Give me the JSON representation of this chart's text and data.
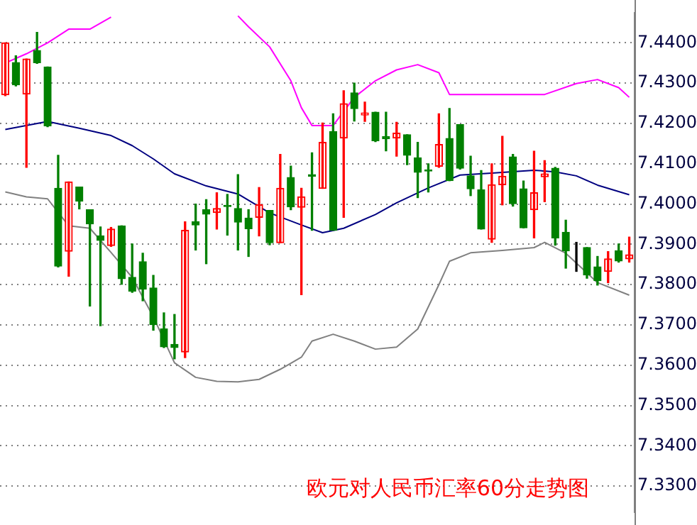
{
  "chart_data": {
    "type": "candlestick",
    "categories": [
      null,
      null,
      null,
      null,
      null,
      null,
      null,
      null,
      null,
      null,
      null,
      null,
      null,
      null,
      null,
      null,
      null,
      null,
      null,
      null,
      null,
      null,
      null,
      null,
      null,
      null,
      null,
      null,
      null,
      null,
      null,
      null,
      null,
      null,
      null,
      null,
      null,
      null,
      null,
      null,
      null,
      null,
      null,
      null,
      null,
      null,
      null,
      null,
      null,
      null,
      null,
      null,
      null,
      null,
      null,
      null,
      null,
      null,
      null,
      null
    ],
    "ohlc": [
      [
        7.4271,
        7.44,
        7.4269,
        7.44
      ],
      [
        7.4351,
        7.4368,
        7.4293,
        7.4296
      ],
      [
        7.4273,
        7.436,
        7.4091,
        7.436
      ],
      [
        7.4381,
        7.4426,
        7.4349,
        7.4351
      ],
      [
        7.434,
        7.434,
        7.4192,
        7.4194
      ],
      [
        7.4039,
        7.4121,
        7.3844,
        7.3846
      ],
      [
        7.3883,
        7.4055,
        7.3821,
        7.4055
      ],
      [
        7.4042,
        7.4042,
        7.3988,
        7.4007
      ],
      [
        7.3986,
        7.3986,
        7.3747,
        7.3951
      ],
      [
        7.3921,
        7.3943,
        7.3698,
        7.391
      ],
      [
        7.3897,
        7.3942,
        7.3895,
        7.3938
      ],
      [
        7.3946,
        7.3946,
        7.3801,
        7.3815
      ],
      [
        7.3818,
        7.3901,
        7.3781,
        7.3784
      ],
      [
        7.3857,
        7.3878,
        7.376,
        7.3789
      ],
      [
        7.3792,
        7.3823,
        7.3687,
        7.3701
      ],
      [
        7.369,
        7.373,
        7.3644,
        7.3646
      ],
      [
        7.3652,
        7.3726,
        7.3616,
        7.3644
      ],
      [
        7.3633,
        7.3956,
        7.3619,
        7.3935
      ],
      [
        7.3956,
        7.4,
        7.3886,
        7.3948
      ],
      [
        7.3986,
        7.4011,
        7.3852,
        7.3975
      ],
      [
        7.3979,
        7.4028,
        7.3938,
        7.3989
      ],
      [
        7.3997,
        7.4024,
        7.3923,
        7.3994
      ],
      [
        7.3989,
        7.4073,
        7.3886,
        7.3955
      ],
      [
        7.3965,
        7.3986,
        7.387,
        7.3939
      ],
      [
        7.3967,
        7.4041,
        7.3921,
        7.3998
      ],
      [
        7.3984,
        7.3984,
        7.3899,
        7.3904
      ],
      [
        7.3904,
        7.4123,
        7.3904,
        7.4039
      ],
      [
        7.4066,
        7.4094,
        7.3986,
        7.3993
      ],
      [
        7.3992,
        7.4039,
        7.3775,
        7.4018
      ],
      [
        7.4073,
        7.4127,
        7.3935,
        7.4069
      ],
      [
        7.4039,
        7.4201,
        7.4039,
        7.4153
      ],
      [
        7.418,
        7.4224,
        7.3935,
        7.3935
      ],
      [
        7.4164,
        7.4281,
        7.3967,
        7.4249
      ],
      [
        7.4276,
        7.43,
        7.4206,
        7.4237
      ],
      [
        7.4221,
        7.4253,
        7.4205,
        7.4226
      ],
      [
        7.4228,
        7.4228,
        7.4155,
        7.4157
      ],
      [
        7.4167,
        7.4228,
        7.4132,
        7.4162
      ],
      [
        7.4164,
        7.4203,
        7.4119,
        7.4176
      ],
      [
        7.4172,
        7.4172,
        7.4098,
        7.4121
      ],
      [
        7.4115,
        7.4153,
        7.4016,
        7.4079
      ],
      [
        7.4085,
        7.41,
        7.403,
        7.4082
      ],
      [
        7.4094,
        7.4224,
        7.4091,
        7.4148
      ],
      [
        7.4163,
        7.4237,
        7.4058,
        7.4058
      ],
      [
        7.4197,
        7.4197,
        7.4087,
        7.4089
      ],
      [
        7.407,
        7.4119,
        7.4021,
        7.4038
      ],
      [
        7.4035,
        7.4083,
        7.3938,
        7.3938
      ],
      [
        7.3913,
        7.41,
        7.3905,
        7.4048
      ],
      [
        7.4048,
        7.4168,
        7.3998,
        7.4069
      ],
      [
        7.4117,
        7.4123,
        7.3995,
        7.4001
      ],
      [
        7.4038,
        7.4057,
        7.3941,
        7.3941
      ],
      [
        7.3986,
        7.4131,
        7.3916,
        7.4028
      ],
      [
        7.4068,
        7.4108,
        7.4006,
        7.4075
      ],
      [
        7.4089,
        7.4091,
        7.3898,
        7.3916
      ],
      [
        7.393,
        7.396,
        7.3841,
        7.3884
      ],
      [
        7.3873,
        7.3905,
        7.3833,
        7.3873
      ],
      [
        7.3892,
        7.3892,
        7.3816,
        7.3824
      ],
      [
        7.3844,
        7.387,
        7.3799,
        7.381
      ],
      [
        7.3833,
        7.3882,
        7.3805,
        7.3864
      ],
      [
        7.3884,
        7.3901,
        7.3856,
        7.3859
      ],
      [
        7.3864,
        7.3918,
        7.3856,
        7.3874
      ]
    ],
    "colors": [
      "#ff0000",
      "#008000",
      "#ff0000",
      "#008000",
      "#008000",
      "#008000",
      "#ff0000",
      "#008000",
      "#008000",
      "#008000",
      "#ff0000",
      "#008000",
      "#008000",
      "#008000",
      "#008000",
      "#008000",
      "#008000",
      "#ff0000",
      "#008000",
      "#008000",
      "#ff0000",
      "#008000",
      "#008000",
      "#008000",
      "#ff0000",
      "#008000",
      "#ff0000",
      "#008000",
      "#ff0000",
      "#008000",
      "#ff0000",
      "#008000",
      "#ff0000",
      "#008000",
      "#ff0000",
      "#008000",
      "#008000",
      "#ff0000",
      "#008000",
      "#008000",
      "#008000",
      "#ff0000",
      "#008000",
      "#008000",
      "#008000",
      "#008000",
      "#ff0000",
      "#ff0000",
      "#008000",
      "#008000",
      "#ff0000",
      "#ff0000",
      "#008000",
      "#008000",
      "#000000",
      "#008000",
      "#008000",
      "#ff0000",
      "#008000",
      "#ff0000"
    ],
    "series": [
      {
        "type": "line",
        "color": "#ff00ff",
        "values": [
          7.435,
          null,
          7.4373,
          null,
          7.44,
          null,
          7.4434,
          null,
          7.4434,
          null,
          7.4464,
          null,
          null,
          null,
          null,
          null,
          null,
          null,
          null,
          null,
          null,
          null,
          7.4467,
          7.444,
          null,
          7.439,
          null,
          7.4306,
          7.4239,
          7.4195,
          null,
          7.4195,
          null,
          7.4265,
          null,
          7.4306,
          null,
          7.4333,
          null,
          7.4346,
          null,
          7.4326,
          7.4272,
          null,
          7.4272,
          null,
          null,
          7.4272,
          null,
          null,
          null,
          7.4272,
          null,
          null,
          7.4299,
          null,
          7.4309,
          null,
          7.4289,
          7.4265
        ]
      },
      {
        "type": "line",
        "color": "#000080",
        "values": [
          7.4185,
          null,
          null,
          null,
          7.4205,
          null,
          null,
          7.4188,
          null,
          null,
          7.417,
          null,
          7.4145,
          null,
          7.4112,
          null,
          7.4075,
          null,
          null,
          7.4045,
          null,
          null,
          7.4025,
          null,
          null,
          7.3978,
          null,
          null,
          7.3948,
          null,
          7.3929,
          null,
          7.394,
          null,
          null,
          7.3974,
          null,
          7.4003,
          null,
          null,
          7.404,
          null,
          null,
          7.4072,
          null,
          null,
          7.4077,
          null,
          null,
          null,
          7.4084,
          null,
          7.408,
          null,
          7.407,
          null,
          7.4047,
          null,
          null,
          7.4023
        ]
      },
      {
        "type": "line",
        "color": "#808080",
        "values": [
          7.403,
          null,
          7.4018,
          null,
          7.4013,
          null,
          7.3946,
          null,
          7.394,
          null,
          7.388,
          null,
          7.3818,
          null,
          7.372,
          null,
          7.3606,
          null,
          7.357,
          null,
          7.356,
          null,
          7.3559,
          null,
          7.3565,
          null,
          7.359,
          null,
          7.362,
          7.366,
          null,
          7.3677,
          null,
          7.366,
          null,
          7.364,
          null,
          7.3645,
          null,
          7.369,
          null,
          7.38,
          7.3858,
          null,
          7.3879,
          null,
          null,
          7.3885,
          null,
          null,
          7.3892,
          7.3905,
          null,
          7.3878,
          null,
          null,
          7.3805,
          null,
          null,
          7.3774
        ]
      }
    ],
    "ylim": [
      7.3236,
      7.4474
    ],
    "yticks": [
      {
        "value": 7.33,
        "label": "7.3300"
      },
      {
        "value": 7.34,
        "label": "7.3400"
      },
      {
        "value": 7.35,
        "label": "7.3500"
      },
      {
        "value": 7.36,
        "label": "7.3600"
      },
      {
        "value": 7.37,
        "label": "7.3700"
      },
      {
        "value": 7.38,
        "label": "7.3800"
      },
      {
        "value": 7.39,
        "label": "7.3900"
      },
      {
        "value": 7.4,
        "label": "7.4000"
      },
      {
        "value": 7.41,
        "label": "7.4100"
      },
      {
        "value": 7.42,
        "label": "7.4200"
      },
      {
        "value": 7.43,
        "label": "7.4300"
      },
      {
        "value": 7.44,
        "label": "7.4400"
      }
    ],
    "grid": "y",
    "tick_labels": "y",
    "annotations": [
      "欧元对人民币汇率60分走势图"
    ]
  }
}
